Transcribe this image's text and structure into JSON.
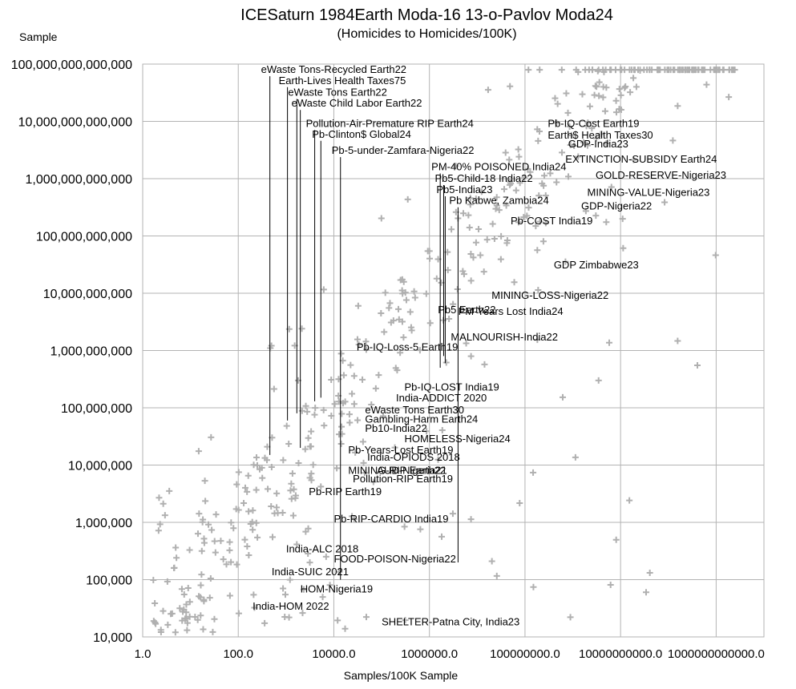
{
  "chart_data": {
    "type": "scatter",
    "title": "ICESaturn 1984Earth Moda-16 13-o-Pavlov Moda24",
    "subtitle": "(Homicides to Homicides/100K)",
    "xlabel": "Samples/100K Sample",
    "ylabel": "Sample",
    "x_scale": "log10",
    "y_scale": "log10",
    "xlim": [
      1,
      10000000000000
    ],
    "ylim": [
      10000,
      100000000000000
    ],
    "grid": true,
    "marker": "plus",
    "marker_color": "#b0b0b0",
    "x_ticks": [
      1,
      100,
      10000,
      1000000,
      100000000,
      10000000000,
      1000000000000
    ],
    "x_tick_labels": [
      "1.0",
      "100.0",
      "10000.0",
      "1000000.0",
      "100000000.0",
      "10000000000.0",
      "1000000000000.0"
    ],
    "y_ticks": [
      10000,
      100000,
      1000000,
      10000000,
      100000000,
      1000000000,
      10000000000,
      100000000000,
      1000000000000,
      10000000000000,
      100000000000000
    ],
    "y_tick_labels": [
      "10,000",
      "100,000",
      "1,000,000",
      "10,000,000",
      "100,000,000",
      "1,000,000,000",
      "10,000,000,000",
      "100,000,000,000",
      "1,000,000,000,000",
      "10,000,000,000,000",
      "100,000,000,000,000"
    ],
    "annotations": [
      {
        "text": "eWaste Tons-Recycled Earth22",
        "x": 300,
        "y": 70000000000000,
        "leader_to": 15000000
      },
      {
        "text": "Earth-Lives Health Taxes75",
        "x": 700,
        "y": 45000000000000,
        "leader_to": 60000000
      },
      {
        "text": "eWaste Tons Earth22",
        "x": 1100,
        "y": 28000000000000,
        "leader_to": 80000000
      },
      {
        "text": "eWaste Child Labor Earth22",
        "x": 1300,
        "y": 18000000000000,
        "leader_to": 20000000
      },
      {
        "text": "Pollution-Air-Premature RIP Earth24",
        "x": 2600,
        "y": 8000000000000,
        "leader_to": 130000000
      },
      {
        "text": "Pb-Clinton$ Global24",
        "x": 3500,
        "y": 5200000000000,
        "leader_to": 150000000
      },
      {
        "text": "Pb-5-under-Zamfara-Nigeria22",
        "x": 9000,
        "y": 2700000000000,
        "leader_to": 100000
      },
      {
        "text": "PM-40% POISONED India24",
        "x": 1100000,
        "y": 1400000000000,
        "leader_to": 500000000
      },
      {
        "text": "Pb5-Child-18 India22",
        "x": 1300000,
        "y": 880000000000,
        "leader_to": 800000000
      },
      {
        "text": "Pb5-India23",
        "x": 1400000,
        "y": 560000000000,
        "leader_to": 600000000
      },
      {
        "text": "Pb Kabwe, Zambia24",
        "x": 2600000,
        "y": 360000000000,
        "leader_to": 200000
      },
      {
        "text": "Pb-IQ-Cost Earth19",
        "x": 300000000,
        "y": 8000000000000
      },
      {
        "text": "Earth$ Health Taxes30",
        "x": 300000000,
        "y": 5000000000000
      },
      {
        "text": "GDP-India23",
        "x": 800000000,
        "y": 3500000000000
      },
      {
        "text": "EXTINCTION-SUBSIDY Earth24",
        "x": 700000000,
        "y": 1900000000000
      },
      {
        "text": "GOLD-RESERVE-Nigeria23",
        "x": 3000000000,
        "y": 1000000000000
      },
      {
        "text": "MINING-VALUE-Nigeria23",
        "x": 2000000000,
        "y": 500000000000
      },
      {
        "text": "GDP-Nigeria22",
        "x": 1500000000,
        "y": 290000000000
      },
      {
        "text": "Pb-COST India19",
        "x": 50000000,
        "y": 160000000000
      },
      {
        "text": "GDP Zimbabwe23",
        "x": 400000000,
        "y": 27000000000
      },
      {
        "text": "MINING-LOSS-Nigeria22",
        "x": 20000000,
        "y": 8000000000
      },
      {
        "text": "Pb5 Earth22",
        "x": 1500000,
        "y": 4500000000
      },
      {
        "text": "PM-Years Lost India24",
        "x": 4000000,
        "y": 4200000000
      },
      {
        "text": "MALNOURISH-India22",
        "x": 2800000,
        "y": 1500000000
      },
      {
        "text": "Pb-IQ-Loss-5 Earth19",
        "x": 30000,
        "y": 1000000000
      },
      {
        "text": "Pb-IQ-LOST India19",
        "x": 300000,
        "y": 200000000
      },
      {
        "text": "India-ADDICT 2020",
        "x": 200000,
        "y": 130000000
      },
      {
        "text": "eWaste Tons Earth30",
        "x": 45000,
        "y": 80000000
      },
      {
        "text": "Gambling-Harm Earth24",
        "x": 45000,
        "y": 55000000
      },
      {
        "text": "Pb10-India22",
        "x": 45000,
        "y": 38000000
      },
      {
        "text": "HOMELESS-Nigeria24",
        "x": 300000,
        "y": 25000000
      },
      {
        "text": "Pb-Years-Lost Earth19",
        "x": 20000,
        "y": 16000000
      },
      {
        "text": "India-OPIODS 2018",
        "x": 50000,
        "y": 12000000
      },
      {
        "text": "MINING-RIP Earth22",
        "x": 20000,
        "y": 7000000
      },
      {
        "text": "AUD-Nigeria21",
        "x": 80000,
        "y": 7000000
      },
      {
        "text": "Pollution-RIP Earth19",
        "x": 25000,
        "y": 5000000
      },
      {
        "text": "Pb-RIP Earth19",
        "x": 3000,
        "y": 3000000
      },
      {
        "text": "Pb-RIP-CARDIO India19",
        "x": 10000,
        "y": 1000000
      },
      {
        "text": "India-ALC 2018",
        "x": 1000,
        "y": 300000
      },
      {
        "text": "FOOD-POISON-Nigeria22",
        "x": 10000,
        "y": 200000
      },
      {
        "text": "India-SUIC 2021",
        "x": 500,
        "y": 120000
      },
      {
        "text": "HOM-Nigeria19",
        "x": 2000,
        "y": 60000
      },
      {
        "text": "India-HOM 2022",
        "x": 200,
        "y": 30000
      },
      {
        "text": "SHELTER-Patna City, India23",
        "x": 100000,
        "y": 16000
      }
    ]
  }
}
